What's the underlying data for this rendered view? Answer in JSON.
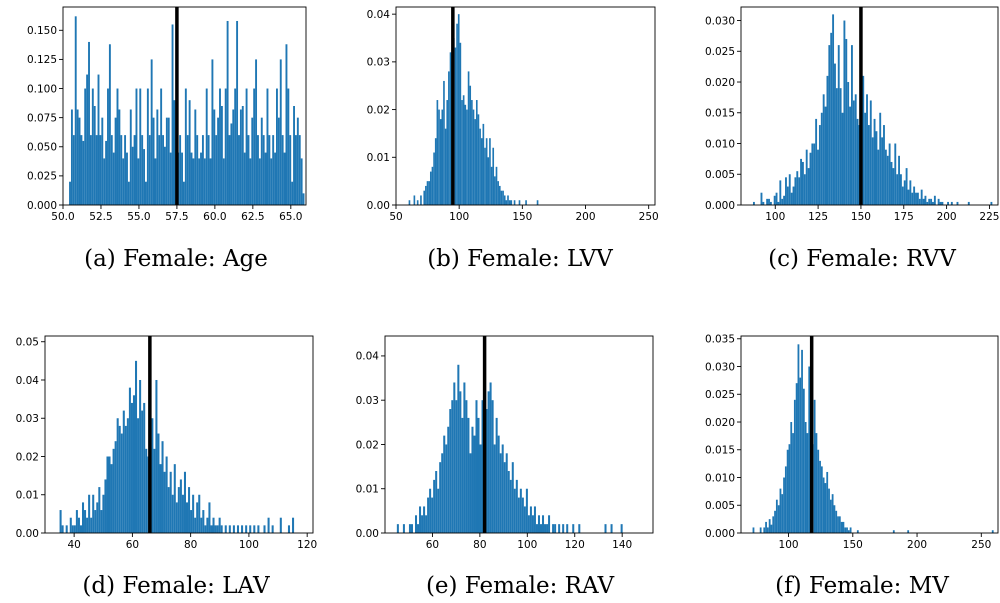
{
  "chart_data": [
    {
      "type": "bar",
      "caption": "(a) Female: Age",
      "xlim": [
        50,
        66
      ],
      "ylim": [
        0,
        0.17
      ],
      "xticks": [
        50.0,
        52.5,
        55.0,
        57.5,
        60.0,
        62.5,
        65.0
      ],
      "xtick_labels": [
        "50.0",
        "52.5",
        "55.0",
        "57.5",
        "60.0",
        "62.5",
        "65.0"
      ],
      "yticks": [
        0,
        0.025,
        0.05,
        0.075,
        0.1,
        0.125,
        0.15
      ],
      "ytick_labels": [
        "0.000",
        "0.025",
        "0.050",
        "0.075",
        "0.100",
        "0.125",
        "0.150"
      ],
      "bins": {
        "start": 50.4,
        "width": 0.125,
        "values": [
          0.02,
          0.082,
          0.06,
          0.162,
          0.082,
          0.075,
          0.06,
          0.055,
          0.1,
          0.112,
          0.14,
          0.06,
          0.1,
          0.085,
          0.06,
          0.112,
          0.06,
          0.075,
          0.04,
          0.055,
          0.1,
          0.138,
          0.06,
          0.045,
          0.075,
          0.1,
          0.082,
          0.06,
          0.04,
          0.06,
          0.045,
          0.02,
          0.082,
          0.05,
          0.06,
          0.1,
          0.04,
          0.1,
          0.06,
          0.048,
          0.02,
          0.1,
          0.06,
          0.125,
          0.075,
          0.04,
          0.082,
          0.06,
          0.1,
          0.06,
          0.05,
          0.075,
          0.075,
          0.045,
          0.155,
          0.09,
          0.06,
          0.045,
          0.06,
          0.045,
          0.02,
          0.1,
          0.06,
          0.09,
          0.045,
          0.04,
          0.082,
          0.06,
          0.04,
          0.045,
          0.06,
          0.04,
          0.1,
          0.06,
          0.04,
          0.125,
          0.082,
          0.06,
          0.075,
          0.1,
          0.085,
          0.04,
          0.1,
          0.158,
          0.06,
          0.07,
          0.082,
          0.1,
          0.158,
          0.06,
          0.082,
          0.085,
          0.045,
          0.1,
          0.06,
          0.04,
          0.075,
          0.1,
          0.125,
          0.06,
          0.04,
          0.075,
          0.06,
          0.045,
          0.1,
          0.06,
          0.04,
          0.06,
          0.045,
          0.1,
          0.075,
          0.125,
          0.06,
          0.045,
          0.138,
          0.1,
          0.06,
          0.02,
          0.085,
          0.06,
          0.075,
          0.06,
          0.04,
          0.01
        ]
      },
      "reference_line": 57.5
    },
    {
      "type": "bar",
      "caption": "(b) Female: LVV",
      "xlim": [
        50,
        255
      ],
      "ylim": [
        0,
        0.0415
      ],
      "xticks": [
        50,
        100,
        150,
        200,
        250
      ],
      "xtick_labels": [
        "50",
        "100",
        "150",
        "200",
        "250"
      ],
      "yticks": [
        0,
        0.01,
        0.02,
        0.03,
        0.04
      ],
      "ytick_labels": [
        "0.00",
        "0.01",
        "0.02",
        "0.03",
        "0.04"
      ],
      "bins": {
        "start": 60,
        "width": 1.3,
        "values": [
          0.001,
          0,
          0,
          0.002,
          0,
          0.001,
          0,
          0.002,
          0,
          0.003,
          0.004,
          0.005,
          0.005,
          0.007,
          0.008,
          0.011,
          0.014,
          0.022,
          0.02,
          0.018,
          0.02,
          0.026,
          0.016,
          0.022,
          0.028,
          0.032,
          0.03,
          0.035,
          0.033,
          0.038,
          0.04,
          0.034,
          0.022,
          0.023,
          0.021,
          0.02,
          0.028,
          0.025,
          0.022,
          0.02,
          0.018,
          0.022,
          0.019,
          0.016,
          0.014,
          0.017,
          0.012,
          0.014,
          0.01,
          0.014,
          0.008,
          0.012,
          0.006,
          0.008,
          0.005,
          0.004,
          0.003,
          0.003,
          0.002,
          0.001,
          0.002,
          0.001,
          0.001,
          0,
          0.001,
          0,
          0,
          0.001,
          0,
          0,
          0,
          0.001,
          0,
          0,
          0,
          0,
          0,
          0,
          0.001
        ]
      },
      "reference_line": 95
    },
    {
      "type": "bar",
      "caption": "(c) Female: RVV",
      "xlim": [
        80,
        230
      ],
      "ylim": [
        0,
        0.0322
      ],
      "xticks": [
        100,
        125,
        150,
        175,
        200,
        225
      ],
      "xtick_labels": [
        "100",
        "125",
        "150",
        "175",
        "200",
        "225"
      ],
      "yticks": [
        0,
        0.005,
        0.01,
        0.015,
        0.02,
        0.025,
        0.03
      ],
      "ytick_labels": [
        "0.000",
        "0.005",
        "0.010",
        "0.015",
        "0.020",
        "0.025",
        "0.030"
      ],
      "bins": {
        "start": 87,
        "width": 1.1,
        "values": [
          0.0005,
          0,
          0,
          0,
          0.002,
          0.0005,
          0,
          0.001,
          0.001,
          0.0005,
          0,
          0.0015,
          0.002,
          0.0005,
          0.004,
          0.001,
          0.0015,
          0.0045,
          0.003,
          0.005,
          0.002,
          0.003,
          0.0045,
          0.0055,
          0.0045,
          0.0075,
          0.007,
          0.005,
          0.009,
          0.006,
          0.0085,
          0.01,
          0.01,
          0.014,
          0.009,
          0.013,
          0.015,
          0.018,
          0.016,
          0.021,
          0.026,
          0.028,
          0.031,
          0.023,
          0.019,
          0.026,
          0.019,
          0.015,
          0.03,
          0.027,
          0.02,
          0.016,
          0.026,
          0.017,
          0.018,
          0.014,
          0.013,
          0.016,
          0.021,
          0.015,
          0.018,
          0.013,
          0.017,
          0.011,
          0.014,
          0.012,
          0.009,
          0.015,
          0.011,
          0.013,
          0.009,
          0.008,
          0.01,
          0.007,
          0.006,
          0.01,
          0.005,
          0.008,
          0.005,
          0.003,
          0.004,
          0.006,
          0.0025,
          0.004,
          0.002,
          0.003,
          0.002,
          0.002,
          0.001,
          0.0025,
          0.001,
          0.0015,
          0.0005,
          0.001,
          0.001,
          0.0005,
          0.0015,
          0,
          0.001,
          0.0005,
          0.0005,
          0,
          0,
          0.0005,
          0,
          0.0005,
          0,
          0,
          0.0005,
          0,
          0,
          0,
          0,
          0,
          0.0005,
          0,
          0,
          0,
          0,
          0,
          0,
          0,
          0,
          0,
          0,
          0,
          0.0005
        ]
      },
      "reference_line": 150
    },
    {
      "type": "bar",
      "caption": "(d) Female: LAV",
      "xlim": [
        30,
        122
      ],
      "ylim": [
        0,
        0.0515
      ],
      "xticks": [
        40,
        60,
        80,
        100,
        120
      ],
      "xtick_labels": [
        "40",
        "60",
        "80",
        "100",
        "120"
      ],
      "yticks": [
        0,
        0.01,
        0.02,
        0.03,
        0.04,
        0.05
      ],
      "ytick_labels": [
        "0.00",
        "0.01",
        "0.02",
        "0.03",
        "0.04",
        "0.05"
      ],
      "bins": {
        "start": 35,
        "width": 0.7,
        "values": [
          0.006,
          0.002,
          0,
          0.002,
          0,
          0.004,
          0.002,
          0.002,
          0.006,
          0.004,
          0.002,
          0.008,
          0.006,
          0.004,
          0.01,
          0.004,
          0.01,
          0.006,
          0.008,
          0.012,
          0.006,
          0.01,
          0.014,
          0.02,
          0.02,
          0.018,
          0.022,
          0.024,
          0.03,
          0.028,
          0.026,
          0.032,
          0.028,
          0.03,
          0.038,
          0.034,
          0.036,
          0.045,
          0.03,
          0.04,
          0.032,
          0.034,
          0.022,
          0.02,
          0.026,
          0.03,
          0.022,
          0.04,
          0.026,
          0.018,
          0.024,
          0.016,
          0.02,
          0.012,
          0.016,
          0.01,
          0.018,
          0.008,
          0.012,
          0.014,
          0.01,
          0.016,
          0.008,
          0.012,
          0.006,
          0.01,
          0.004,
          0.008,
          0.01,
          0.004,
          0.006,
          0.002,
          0.004,
          0.008,
          0.002,
          0.004,
          0.002,
          0.002,
          0.004,
          0.002,
          0,
          0.002,
          0,
          0.002,
          0,
          0.002,
          0,
          0.002,
          0,
          0.002,
          0,
          0.002,
          0,
          0.002,
          0,
          0.002,
          0,
          0.002,
          0,
          0,
          0.002,
          0,
          0.004,
          0,
          0.002,
          0,
          0,
          0,
          0.004,
          0,
          0,
          0,
          0.002,
          0,
          0.004
        ]
      },
      "reference_line": 66
    },
    {
      "type": "bar",
      "caption": "(e) Female: RAV",
      "xlim": [
        40,
        153
      ],
      "ylim": [
        0,
        0.0445
      ],
      "xticks": [
        60,
        80,
        100,
        120,
        140
      ],
      "xtick_labels": [
        "60",
        "80",
        "100",
        "120",
        "140"
      ],
      "yticks": [
        0,
        0.01,
        0.02,
        0.03,
        0.04
      ],
      "ytick_labels": [
        "0.00",
        "0.01",
        "0.02",
        "0.03",
        "0.04"
      ],
      "bins": {
        "start": 45,
        "width": 0.85,
        "values": [
          0.002,
          0,
          0,
          0.002,
          0,
          0,
          0.002,
          0.002,
          0,
          0.004,
          0.002,
          0.006,
          0.004,
          0.006,
          0.004,
          0.008,
          0.01,
          0.008,
          0.012,
          0.014,
          0.01,
          0.016,
          0.018,
          0.022,
          0.02,
          0.024,
          0.028,
          0.03,
          0.034,
          0.03,
          0.038,
          0.032,
          0.026,
          0.034,
          0.03,
          0.026,
          0.018,
          0.024,
          0.022,
          0.03,
          0.026,
          0.02,
          0.03,
          0.022,
          0.028,
          0.032,
          0.034,
          0.03,
          0.02,
          0.026,
          0.022,
          0.018,
          0.02,
          0.016,
          0.018,
          0.014,
          0.012,
          0.016,
          0.01,
          0.012,
          0.008,
          0.01,
          0.008,
          0.006,
          0.01,
          0.004,
          0.006,
          0.004,
          0.006,
          0.002,
          0.004,
          0.002,
          0.004,
          0.002,
          0.002,
          0.004,
          0,
          0.002,
          0.002,
          0,
          0.002,
          0,
          0.002,
          0,
          0.002,
          0,
          0,
          0.002,
          0,
          0,
          0.002,
          0,
          0,
          0,
          0,
          0,
          0,
          0,
          0,
          0,
          0,
          0,
          0,
          0.002,
          0,
          0,
          0.002,
          0,
          0,
          0,
          0,
          0.002
        ]
      },
      "reference_line": 82
    },
    {
      "type": "bar",
      "caption": "(f) Female: MV",
      "xlim": [
        63,
        263
      ],
      "ylim": [
        0,
        0.0355
      ],
      "xticks": [
        100,
        150,
        200,
        250
      ],
      "xtick_labels": [
        "100",
        "150",
        "200",
        "250"
      ],
      "yticks": [
        0,
        0.005,
        0.01,
        0.015,
        0.02,
        0.025,
        0.03,
        0.035
      ],
      "ytick_labels": [
        "0.000",
        "0.005",
        "0.010",
        "0.015",
        "0.020",
        "0.025",
        "0.030",
        "0.035"
      ],
      "bins": {
        "start": 72,
        "width": 1.4,
        "values": [
          0.001,
          0,
          0,
          0,
          0.001,
          0,
          0.001,
          0.002,
          0.001,
          0.0025,
          0.0015,
          0.003,
          0.004,
          0.006,
          0.005,
          0.008,
          0.007,
          0.01,
          0.012,
          0.015,
          0.016,
          0.02,
          0.018,
          0.024,
          0.027,
          0.034,
          0.028,
          0.033,
          0.026,
          0.02,
          0.018,
          0.03,
          0.02,
          0.016,
          0.024,
          0.018,
          0.015,
          0.013,
          0.012,
          0.01,
          0.009,
          0.011,
          0.008,
          0.006,
          0.007,
          0.005,
          0.004,
          0.003,
          0.003,
          0.002,
          0.002,
          0.001,
          0.001,
          0.0005,
          0.001,
          0,
          0,
          0,
          0.0005,
          0,
          0,
          0,
          0,
          0,
          0,
          0,
          0,
          0,
          0,
          0,
          0,
          0,
          0,
          0,
          0,
          0,
          0,
          0,
          0.0005,
          0,
          0,
          0,
          0,
          0,
          0,
          0,
          0.0005,
          0,
          0,
          0,
          0,
          0,
          0,
          0,
          0,
          0,
          0,
          0,
          0,
          0,
          0,
          0,
          0,
          0,
          0,
          0,
          0,
          0,
          0,
          0,
          0,
          0,
          0,
          0,
          0,
          0,
          0,
          0,
          0,
          0,
          0,
          0,
          0,
          0,
          0,
          0,
          0,
          0,
          0,
          0,
          0,
          0,
          0,
          0.0005
        ]
      },
      "reference_line": 118
    }
  ]
}
